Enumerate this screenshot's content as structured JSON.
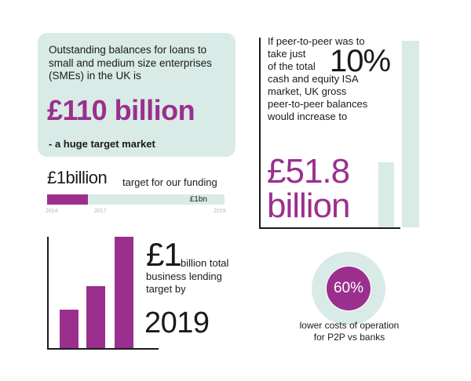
{
  "smes": {
    "lead": "Outstanding balances for loans to small and medium size enterprises (SMEs) in the UK is",
    "amount": "£110 billion",
    "tail": "- a huge target market"
  },
  "funding": {
    "amount_prefix": "£1",
    "amount_suffix": "billion",
    "label": "target for our funding",
    "bar_end_label": "£1bn",
    "years": [
      "2014",
      "2017",
      "2019"
    ],
    "progress_fraction": 0.23
  },
  "p2p": {
    "line1": "If peer-to-peer was to",
    "line2": "take just",
    "line3": "of the total",
    "percent": "10%",
    "line4": "cash and equity ISA",
    "line5": "market, UK gross",
    "line6": "peer-to-peer balances",
    "line7": "would increase to",
    "value_line1": "£51.8",
    "value_line2": "billion"
  },
  "lending": {
    "amount": "£1",
    "unit": "billion total",
    "line1": "business lending",
    "line2": "target by",
    "year": "2019"
  },
  "cost": {
    "percent": "60%",
    "percent_value": 60,
    "caption_line1": "lower costs of operation",
    "caption_line2": "for P2P vs banks"
  },
  "colors": {
    "purple": "#9b2f8e",
    "mint": "#d9ebe6",
    "text": "#1a1a1a"
  }
}
